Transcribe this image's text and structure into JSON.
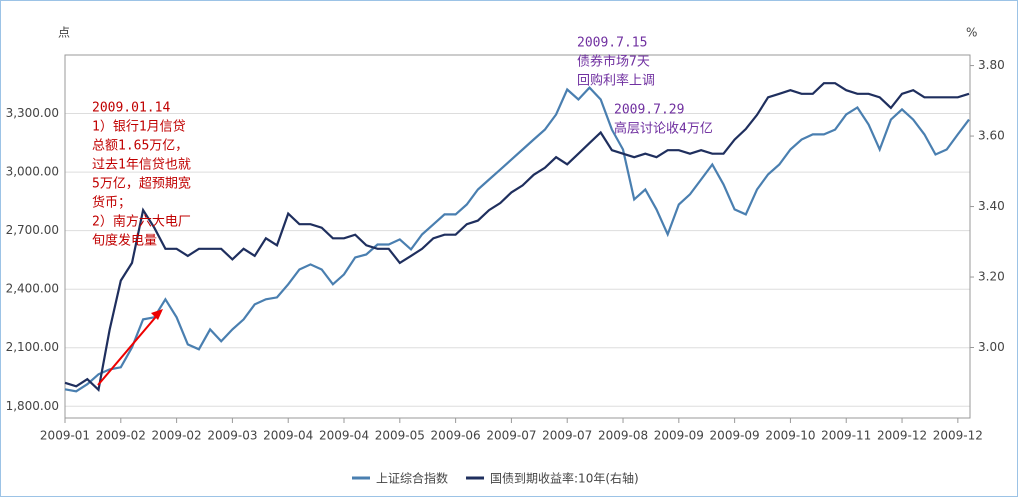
{
  "chart_data": {
    "type": "line",
    "y_unit": "点",
    "y2_unit": "%",
    "categories": [
      "2009-01",
      null,
      null,
      null,
      null,
      "2009-02",
      null,
      null,
      null,
      null,
      "2009-02",
      null,
      null,
      null,
      null,
      "2009-03",
      null,
      null,
      null,
      null,
      "2009-04",
      null,
      null,
      null,
      null,
      "2009-04",
      null,
      null,
      null,
      null,
      "2009-05",
      null,
      null,
      null,
      null,
      "2009-06",
      null,
      null,
      null,
      null,
      "2009-07",
      null,
      null,
      null,
      null,
      "2009-07",
      null,
      null,
      null,
      null,
      "2009-08",
      null,
      null,
      null,
      null,
      "2009-09",
      null,
      null,
      null,
      null,
      "2009-09",
      null,
      null,
      null,
      null,
      "2009-10",
      null,
      null,
      null,
      null,
      "2009-11",
      null,
      null,
      null,
      null,
      "2009-12",
      null,
      null,
      null,
      null,
      "2009-12",
      null
    ],
    "series": [
      {
        "name": "上证综合指数",
        "color": "#4a7fb0",
        "values": [
          1887,
          1877,
          1913,
          1964,
          1989,
          2000,
          2102,
          2245,
          2256,
          2348,
          2256,
          2117,
          2092,
          2194,
          2133,
          2194,
          2245,
          2322,
          2348,
          2358,
          2425,
          2501,
          2527,
          2501,
          2425,
          2476,
          2563,
          2578,
          2629,
          2629,
          2655,
          2604,
          2681,
          2732,
          2783,
          2783,
          2834,
          2911,
          2962,
          3013,
          3064,
          3116,
          3167,
          3218,
          3295,
          3423,
          3372,
          3433,
          3372,
          3218,
          3116,
          2860,
          2911,
          2809,
          2681,
          2834,
          2886,
          2962,
          3039,
          2937,
          2809,
          2783,
          2911,
          2988,
          3039,
          3116,
          3167,
          3193,
          3193,
          3218,
          3295,
          3331,
          3244,
          3116,
          3269,
          3321,
          3269,
          3193,
          3090,
          3116,
          3193,
          3269
        ]
      },
      {
        "name": "国债到期收益率:10年(右轴)",
        "color": "#1f2f5e",
        "axis": "y2",
        "values": [
          2.9,
          2.89,
          2.91,
          2.88,
          3.05,
          3.19,
          3.24,
          3.39,
          3.34,
          3.28,
          3.28,
          3.26,
          3.28,
          3.28,
          3.28,
          3.25,
          3.28,
          3.26,
          3.31,
          3.29,
          3.38,
          3.35,
          3.35,
          3.34,
          3.31,
          3.31,
          3.32,
          3.29,
          3.28,
          3.28,
          3.24,
          3.26,
          3.28,
          3.31,
          3.32,
          3.32,
          3.35,
          3.36,
          3.39,
          3.41,
          3.44,
          3.46,
          3.49,
          3.51,
          3.54,
          3.52,
          3.55,
          3.58,
          3.61,
          3.56,
          3.55,
          3.54,
          3.55,
          3.54,
          3.56,
          3.56,
          3.55,
          3.56,
          3.55,
          3.55,
          3.59,
          3.62,
          3.66,
          3.71,
          3.72,
          3.73,
          3.72,
          3.72,
          3.75,
          3.75,
          3.73,
          3.72,
          3.72,
          3.71,
          3.68,
          3.72,
          3.73,
          3.71,
          3.71,
          3.71,
          3.71,
          3.72
        ]
      }
    ],
    "ylim": [
      1740,
      3600
    ],
    "yticks": [
      {
        "value": 1800,
        "label": "1,800.00"
      },
      {
        "value": 2100,
        "label": "2,100.00"
      },
      {
        "value": 2400,
        "label": "2,400.00"
      },
      {
        "value": 2700,
        "label": "2,700.00"
      },
      {
        "value": 3000,
        "label": "3,000.00"
      },
      {
        "value": 3300,
        "label": "3,300.00"
      }
    ],
    "y2lim": [
      2.8,
      3.83
    ],
    "y2ticks": [
      {
        "value": 3.0,
        "label": "3.00"
      },
      {
        "value": 3.2,
        "label": "3.20"
      },
      {
        "value": 3.4,
        "label": "3.40"
      },
      {
        "value": 3.6,
        "label": "3.60"
      },
      {
        "value": 3.8,
        "label": "3.80"
      }
    ],
    "grid": true,
    "annotations": [
      {
        "color": "#c00000",
        "lines": [
          "2009.01.14",
          "1）银行1月信贷",
          "总额1.65万亿，",
          "过去1年信贷也就",
          "5万亿，超预期宽",
          "货币；",
          "2）南方六大电厂",
          "旬度发电量"
        ]
      },
      {
        "color": "#7030a0",
        "lines": [
          "2009.7.15",
          "债券市场7天",
          "回购利率上调"
        ]
      },
      {
        "color": "#7030a0",
        "lines": [
          "2009.7.29",
          "高层讨论收4万亿"
        ]
      }
    ]
  }
}
